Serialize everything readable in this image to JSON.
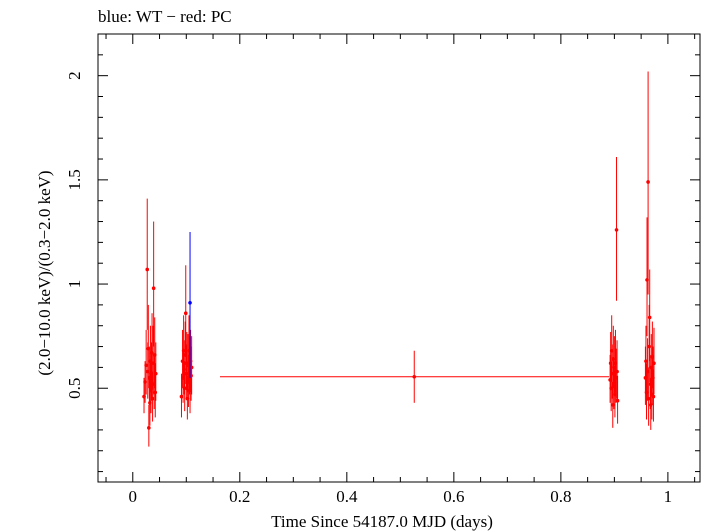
{
  "chart_data": {
    "type": "scatter",
    "title": "blue: WT − red: PC",
    "xlabel": "Time Since 54187.0 MJD (days)",
    "ylabel": "(2.0−10.0 keV)/(0.3−2.0 keV)",
    "xlim": [
      -0.065,
      1.06
    ],
    "ylim": [
      0.05,
      2.2
    ],
    "xticks": [
      0,
      0.2,
      0.4,
      0.6,
      0.8,
      1
    ],
    "xtick_labels": [
      "0",
      "0.2",
      "0.4",
      "0.6",
      "0.8",
      "1"
    ],
    "yticks": [
      0.5,
      1,
      1.5,
      2
    ],
    "ytick_labels": [
      "0.5",
      "1",
      "1.5",
      "2"
    ],
    "grid": false,
    "series": [
      {
        "color": "#0000ff",
        "points": [
          {
            "x": 0.107,
            "y": 0.91,
            "ylo": 0.55,
            "yhi": 1.25
          }
        ]
      },
      {
        "color": "#ff0000",
        "points": [
          {
            "x": 0.021,
            "y": 0.46,
            "ylo": 0.38,
            "yhi": 0.55
          },
          {
            "x": 0.023,
            "y": 0.53,
            "ylo": 0.43,
            "yhi": 0.63
          },
          {
            "x": 0.025,
            "y": 0.61,
            "ylo": 0.47,
            "yhi": 0.78
          },
          {
            "x": 0.027,
            "y": 1.07,
            "ylo": 0.78,
            "yhi": 1.41
          },
          {
            "x": 0.028,
            "y": 0.58,
            "ylo": 0.45,
            "yhi": 0.72
          },
          {
            "x": 0.029,
            "y": 0.69,
            "ylo": 0.5,
            "yhi": 0.9
          },
          {
            "x": 0.03,
            "y": 0.31,
            "ylo": 0.22,
            "yhi": 0.42
          },
          {
            "x": 0.031,
            "y": 0.55,
            "ylo": 0.42,
            "yhi": 0.7
          },
          {
            "x": 0.032,
            "y": 0.43,
            "ylo": 0.32,
            "yhi": 0.56
          },
          {
            "x": 0.033,
            "y": 0.63,
            "ylo": 0.48,
            "yhi": 0.8
          },
          {
            "x": 0.034,
            "y": 0.5,
            "ylo": 0.38,
            "yhi": 0.63
          },
          {
            "x": 0.035,
            "y": 0.57,
            "ylo": 0.44,
            "yhi": 0.72
          },
          {
            "x": 0.036,
            "y": 0.67,
            "ylo": 0.5,
            "yhi": 0.86
          },
          {
            "x": 0.037,
            "y": 0.45,
            "ylo": 0.34,
            "yhi": 0.58
          },
          {
            "x": 0.038,
            "y": 0.62,
            "ylo": 0.47,
            "yhi": 0.8
          },
          {
            "x": 0.039,
            "y": 0.98,
            "ylo": 0.7,
            "yhi": 1.3
          },
          {
            "x": 0.04,
            "y": 0.52,
            "ylo": 0.4,
            "yhi": 0.66
          },
          {
            "x": 0.041,
            "y": 0.66,
            "ylo": 0.5,
            "yhi": 0.84
          },
          {
            "x": 0.042,
            "y": 0.48,
            "ylo": 0.36,
            "yhi": 0.62
          },
          {
            "x": 0.043,
            "y": 0.57,
            "ylo": 0.44,
            "yhi": 0.72
          },
          {
            "x": 0.091,
            "y": 0.46,
            "ylo": 0.36,
            "yhi": 0.57
          },
          {
            "x": 0.093,
            "y": 0.63,
            "ylo": 0.5,
            "yhi": 0.78
          },
          {
            "x": 0.094,
            "y": 0.55,
            "ylo": 0.43,
            "yhi": 0.69
          },
          {
            "x": 0.095,
            "y": 0.68,
            "ylo": 0.54,
            "yhi": 0.85
          },
          {
            "x": 0.096,
            "y": 0.59,
            "ylo": 0.47,
            "yhi": 0.73
          },
          {
            "x": 0.097,
            "y": 0.5,
            "ylo": 0.39,
            "yhi": 0.63
          },
          {
            "x": 0.098,
            "y": 0.66,
            "ylo": 0.52,
            "yhi": 0.82
          },
          {
            "x": 0.099,
            "y": 0.86,
            "ylo": 0.65,
            "yhi": 1.09
          },
          {
            "x": 0.1,
            "y": 0.57,
            "ylo": 0.45,
            "yhi": 0.71
          },
          {
            "x": 0.101,
            "y": 0.62,
            "ylo": 0.49,
            "yhi": 0.77
          },
          {
            "x": 0.102,
            "y": 0.45,
            "ylo": 0.35,
            "yhi": 0.56
          },
          {
            "x": 0.103,
            "y": 0.61,
            "ylo": 0.48,
            "yhi": 0.76
          },
          {
            "x": 0.104,
            "y": 0.53,
            "ylo": 0.41,
            "yhi": 0.66
          },
          {
            "x": 0.105,
            "y": 0.68,
            "ylo": 0.53,
            "yhi": 0.85
          },
          {
            "x": 0.106,
            "y": 0.6,
            "ylo": 0.47,
            "yhi": 0.75
          },
          {
            "x": 0.107,
            "y": 0.49,
            "ylo": 0.38,
            "yhi": 0.61
          },
          {
            "x": 0.108,
            "y": 0.63,
            "ylo": 0.49,
            "yhi": 0.78
          },
          {
            "x": 0.109,
            "y": 0.56,
            "ylo": 0.44,
            "yhi": 0.7
          },
          {
            "x": 0.11,
            "y": 0.6,
            "ylo": 0.47,
            "yhi": 0.75
          },
          {
            "x": 0.526,
            "y": 0.555,
            "ylo": 0.43,
            "yhi": 0.68,
            "xlo": 0.163,
            "xhi": 0.89
          },
          {
            "x": 0.892,
            "y": 0.54,
            "ylo": 0.43,
            "yhi": 0.66
          },
          {
            "x": 0.893,
            "y": 0.62,
            "ylo": 0.49,
            "yhi": 0.77
          },
          {
            "x": 0.894,
            "y": 0.5,
            "ylo": 0.39,
            "yhi": 0.62
          },
          {
            "x": 0.895,
            "y": 0.68,
            "ylo": 0.53,
            "yhi": 0.85
          },
          {
            "x": 0.896,
            "y": 0.57,
            "ylo": 0.45,
            "yhi": 0.71
          },
          {
            "x": 0.897,
            "y": 0.42,
            "ylo": 0.31,
            "yhi": 0.53
          },
          {
            "x": 0.898,
            "y": 0.64,
            "ylo": 0.5,
            "yhi": 0.8
          },
          {
            "x": 0.899,
            "y": 0.52,
            "ylo": 0.4,
            "yhi": 0.65
          },
          {
            "x": 0.9,
            "y": 0.6,
            "ylo": 0.47,
            "yhi": 0.75
          },
          {
            "x": 0.901,
            "y": 0.47,
            "ylo": 0.36,
            "yhi": 0.59
          },
          {
            "x": 0.902,
            "y": 0.62,
            "ylo": 0.48,
            "yhi": 0.78
          },
          {
            "x": 0.903,
            "y": 0.55,
            "ylo": 0.43,
            "yhi": 0.69
          },
          {
            "x": 0.904,
            "y": 1.26,
            "ylo": 0.92,
            "yhi": 1.61
          },
          {
            "x": 0.905,
            "y": 0.58,
            "ylo": 0.45,
            "yhi": 0.73
          },
          {
            "x": 0.906,
            "y": 0.44,
            "ylo": 0.33,
            "yhi": 0.56
          },
          {
            "x": 0.958,
            "y": 0.55,
            "ylo": 0.42,
            "yhi": 0.7
          },
          {
            "x": 0.959,
            "y": 0.63,
            "ylo": 0.48,
            "yhi": 0.8
          },
          {
            "x": 0.96,
            "y": 0.48,
            "ylo": 0.35,
            "yhi": 0.62
          },
          {
            "x": 0.961,
            "y": 1.02,
            "ylo": 0.75,
            "yhi": 1.32
          },
          {
            "x": 0.962,
            "y": 0.58,
            "ylo": 0.44,
            "yhi": 0.74
          },
          {
            "x": 0.963,
            "y": 1.49,
            "ylo": 0.95,
            "yhi": 2.02
          },
          {
            "x": 0.964,
            "y": 0.45,
            "ylo": 0.32,
            "yhi": 0.6
          },
          {
            "x": 0.965,
            "y": 0.7,
            "ylo": 0.53,
            "yhi": 0.9
          },
          {
            "x": 0.966,
            "y": 0.84,
            "ylo": 0.63,
            "yhi": 1.07
          },
          {
            "x": 0.967,
            "y": 0.52,
            "ylo": 0.4,
            "yhi": 0.66
          },
          {
            "x": 0.968,
            "y": 0.42,
            "ylo": 0.3,
            "yhi": 0.55
          },
          {
            "x": 0.969,
            "y": 0.6,
            "ylo": 0.46,
            "yhi": 0.76
          },
          {
            "x": 0.97,
            "y": 0.47,
            "ylo": 0.35,
            "yhi": 0.6
          },
          {
            "x": 0.971,
            "y": 0.65,
            "ylo": 0.5,
            "yhi": 0.82
          },
          {
            "x": 0.972,
            "y": 0.55,
            "ylo": 0.42,
            "yhi": 0.7
          },
          {
            "x": 0.973,
            "y": 0.46,
            "ylo": 0.34,
            "yhi": 0.59
          },
          {
            "x": 0.974,
            "y": 0.62,
            "ylo": 0.47,
            "yhi": 0.79
          }
        ]
      }
    ]
  }
}
